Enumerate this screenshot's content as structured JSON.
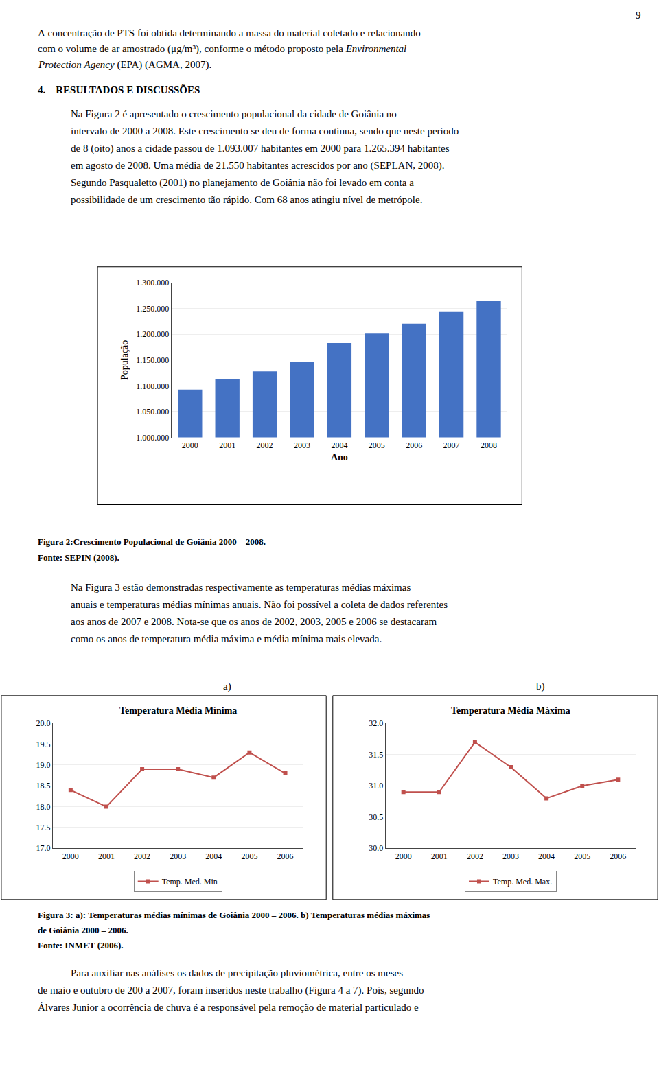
{
  "chart_data": [
    {
      "type": "bar",
      "categories": [
        "2000",
        "2001",
        "2002",
        "2003",
        "2004",
        "2005",
        "2006",
        "2007",
        "2008"
      ],
      "values": [
        1093007,
        1112557,
        1128079,
        1146068,
        1183055,
        1201396,
        1220444,
        1244645,
        1265394
      ],
      "color": "#4472C4",
      "xlabel": "Ano",
      "ylabel": "População",
      "ylim": [
        1000000,
        1300000
      ],
      "yticks": [
        {
          "value": 1000000,
          "label": "1.000.000"
        },
        {
          "value": 1050000,
          "label": "1.050.000"
        },
        {
          "value": 1100000,
          "label": "1.100.000"
        },
        {
          "value": 1150000,
          "label": "1.150.000"
        },
        {
          "value": 1200000,
          "label": "1.200.000"
        },
        {
          "value": 1250000,
          "label": "1.250.000"
        },
        {
          "value": 1300000,
          "label": "1.300.000"
        }
      ],
      "grid": true
    },
    {
      "type": "line",
      "title": "Temperatura Média Mínima",
      "categories": [
        "2000",
        "2001",
        "2002",
        "2003",
        "2004",
        "2005",
        "2006"
      ],
      "series": [
        {
          "name": "Temp. Med. Min",
          "color": "#C0504D",
          "marker": "square",
          "values": [
            18.4,
            18.0,
            18.9,
            18.9,
            18.7,
            19.3,
            18.8
          ]
        }
      ],
      "ylim": [
        17.0,
        20.0
      ],
      "yticks": [
        {
          "value": 17.0,
          "label": "17.0"
        },
        17.5,
        {
          "value": 18.0,
          "label": "18.0"
        },
        18.5,
        {
          "value": 19.0,
          "label": "19.0"
        },
        19.5,
        {
          "value": 20.0,
          "label": "20.0"
        }
      ],
      "grid": true,
      "legend": "bottom"
    },
    {
      "type": "line",
      "title": "Temperatura Média Máxima",
      "categories": [
        "2000",
        "2001",
        "2002",
        "2003",
        "2004",
        "2005",
        "2006"
      ],
      "series": [
        {
          "name": "Temp. Med. Max.",
          "color": "#C0504D",
          "marker": "square",
          "values": [
            30.9,
            30.9,
            31.7,
            31.3,
            30.8,
            31.0,
            31.1
          ]
        }
      ],
      "ylim": [
        30.0,
        32.0
      ],
      "yticks": [
        {
          "value": 30.0,
          "label": "30.0"
        },
        30.5,
        {
          "value": 31.0,
          "label": "31.0"
        },
        31.5,
        {
          "value": 32.0,
          "label": "32.0"
        }
      ],
      "grid": true,
      "legend": "bottom"
    }
  ],
  "annotations": [
    "9",
    "A concentração de PTS foi obtida determinando a massa do material coletado e relacionando",
    "com o volume de ar amostrado (μg/m³), conforme o método proposto pela ",
    "Environmental",
    "Protection Agency",
    " (EPA) (AGMA, 2007).",
    "4.    RESULTADOS E DISCUSSÕES",
    "Na Figura 2 é apresentado o crescimento populacional da cidade de Goiânia no\nintervalo de 2000 a 2008. Este crescimento se deu de forma contínua, sendo que neste período\nde 8 (oito) anos a cidade passou de 1.093.007 habitantes em 2000 para 1.265.394 habitantes\nem agosto de 2008. Uma média de 21.550 habitantes acrescidos por ano (SEPLAN, 2008).\nSegundo Pasqualetto (2001) no planejamento de Goiânia não foi levado em conta a\npossibilidade de um crescimento tão rápido. Com 68 anos atingiu nível de metrópole.",
    "Figura 2:Crescimento Populacional de Goiânia 2000 – 2008.",
    "Fonte: SEPIN (2008).",
    "Na Figura 3 estão demonstradas respectivamente as temperaturas médias máximas\nanuais e temperaturas médias mínimas anuais. Não foi possível a coleta de dados referentes\naos anos de 2007 e 2008. Nota-se que os anos de 2002, 2003, 2005 e 2006 se destacaram\ncomo os anos de temperatura média máxima e média mínima mais elevada.",
    "a)",
    "b)",
    "Figura 3: a): Temperaturas médias mínimas de Goiânia 2000 – 2006. b) Temperaturas médias máximas",
    "de Goiânia 2000 – 2006.",
    "Fonte: INMET (2006).",
    "Para auxiliar nas análises os dados de precipitação pluviométrica, entre os meses",
    "de maio e outubro de 200 a 2007, foram inseridos neste trabalho (Figura 4 a 7). Pois, segundo",
    "Álvares Junior a ocorrência de chuva é a responsável pela remoção de material particulado e"
  ]
}
